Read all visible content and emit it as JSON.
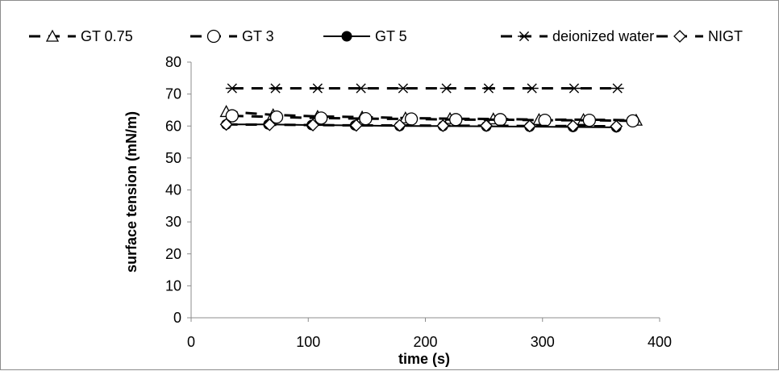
{
  "chart_data": {
    "type": "line",
    "xlabel": "time (s)",
    "ylabel": "surface tension (mN/m)",
    "xlim": [
      0,
      400
    ],
    "ylim": [
      0,
      80
    ],
    "x_ticks": [
      "0",
      "100",
      "200",
      "300",
      "400"
    ],
    "y_ticks": [
      "0",
      "10",
      "20",
      "30",
      "40",
      "50",
      "60",
      "70",
      "80"
    ],
    "grid": false,
    "legend_position": "top",
    "series": [
      {
        "name": "GT 0.75",
        "marker": "triangle-open",
        "line": "dashed",
        "x": [
          30,
          70,
          108,
          146,
          183,
          221,
          258,
          297,
          335,
          380
        ],
        "y": [
          64.5,
          63.5,
          63.0,
          62.8,
          62.5,
          62.3,
          62.2,
          62.0,
          62.0,
          61.8
        ]
      },
      {
        "name": "GT 3",
        "marker": "circle-open",
        "line": "dashed",
        "x": [
          35,
          73,
          111,
          149,
          188,
          226,
          264,
          302,
          340,
          377
        ],
        "y": [
          63.2,
          62.8,
          62.5,
          62.3,
          62.2,
          62.0,
          62.0,
          61.8,
          61.8,
          61.6
        ]
      },
      {
        "name": "GT 5",
        "marker": "circle-filled",
        "line": "solid",
        "x": [
          30,
          66,
          103,
          140,
          178,
          215,
          252,
          289,
          326,
          363
        ],
        "y": [
          60.5,
          60.5,
          60.3,
          60.2,
          60.0,
          60.0,
          59.9,
          59.8,
          59.7,
          59.6
        ]
      },
      {
        "name": "deionized water",
        "marker": "asterisk",
        "line": "dashed",
        "x": [
          35,
          72,
          108,
          145,
          181,
          218,
          254,
          291,
          327,
          364
        ],
        "y": [
          71.8,
          71.8,
          71.8,
          71.8,
          71.8,
          71.8,
          71.8,
          71.8,
          71.8,
          71.8
        ]
      },
      {
        "name": "NIGT",
        "marker": "diamond-open",
        "line": "dashed",
        "x": [
          30,
          67,
          104,
          141,
          178,
          215,
          252,
          289,
          326,
          363
        ],
        "y": [
          60.5,
          60.4,
          60.3,
          60.2,
          60.2,
          60.1,
          60.1,
          60.0,
          60.0,
          59.9
        ]
      }
    ]
  }
}
